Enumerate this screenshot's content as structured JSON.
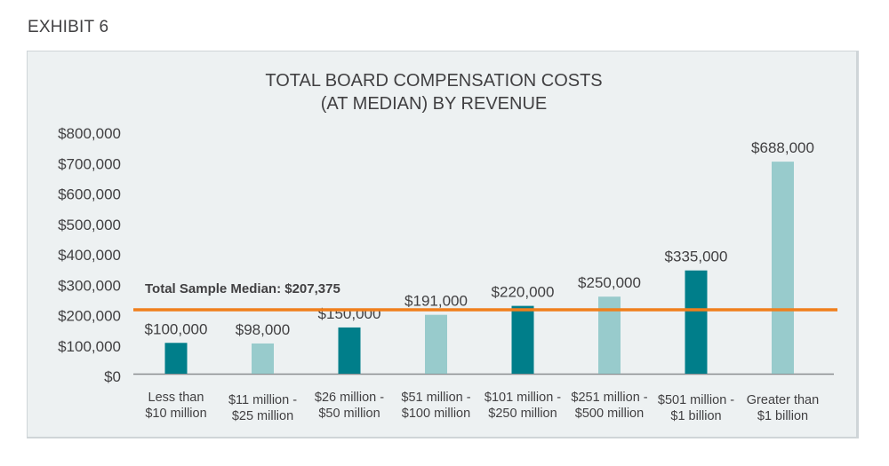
{
  "exhibit_label": "EXHIBIT 6",
  "chart_data": {
    "type": "bar",
    "title": [
      "TOTAL BOARD COMPENSATION COSTS",
      "(AT MEDIAN) BY REVENUE"
    ],
    "xlabel": "",
    "ylabel": "",
    "ylim": [
      0,
      800000
    ],
    "yticks": [
      0,
      100000,
      200000,
      300000,
      400000,
      500000,
      600000,
      700000,
      800000
    ],
    "ytick_labels": [
      "$0",
      "$100,000",
      "$200,000",
      "$300,000",
      "$400,000",
      "$500,000",
      "$600,000",
      "$700,000",
      "$800,000"
    ],
    "grid": false,
    "categories": [
      [
        "Less than",
        "$10 million"
      ],
      [
        "$11 million -",
        "$25 million"
      ],
      [
        "$26 million -",
        "$50 million"
      ],
      [
        "$51 million -",
        "$100 million"
      ],
      [
        "$101 million -",
        "$250 million"
      ],
      [
        "$251 million -",
        "$500 million"
      ],
      [
        "$501 million -",
        "$1 billion"
      ],
      [
        "Greater than",
        "$1 billion"
      ]
    ],
    "values": [
      100000,
      98000,
      150000,
      191000,
      220000,
      250000,
      335000,
      688000
    ],
    "value_labels": [
      "$100,000",
      "$98,000",
      "$150,000",
      "$191,000",
      "$220,000",
      "$250,000",
      "$335,000",
      "$688,000"
    ],
    "bar_colors": [
      "#007e8a",
      "#98cbcc",
      "#007e8a",
      "#98cbcc",
      "#007e8a",
      "#98cbcc",
      "#007e8a",
      "#98cbcc"
    ],
    "reference_line": {
      "label": "Total Sample Median: $207,375",
      "value": 207375,
      "color": "#f07f1c"
    },
    "axis_color": "#8a8d8f"
  }
}
